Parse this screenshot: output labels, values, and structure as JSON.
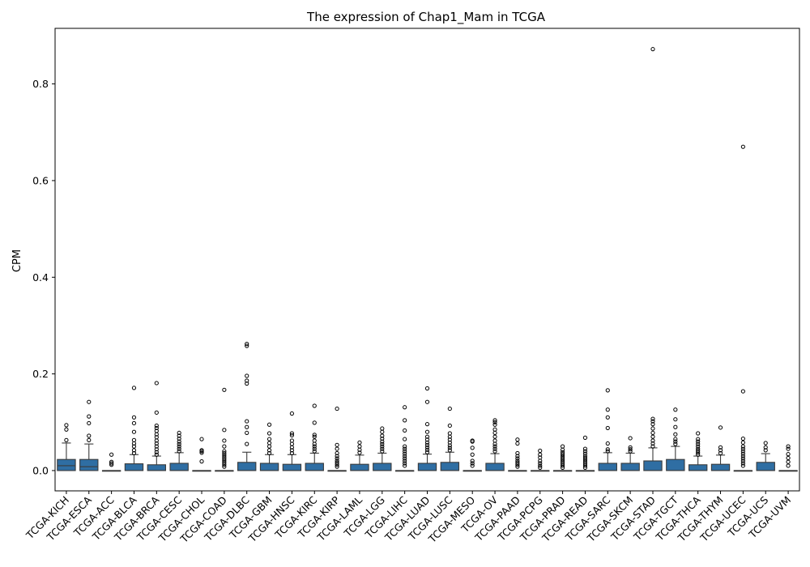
{
  "chart_data": {
    "type": "box",
    "title": "The expression of Chap1_Mam in TCGA",
    "xlabel": "",
    "ylabel": "CPM",
    "ylim": [
      -0.042,
      0.915
    ],
    "yticks": [
      0.0,
      0.2,
      0.4,
      0.6,
      0.8
    ],
    "ytick_labels": [
      "0.0",
      "0.2",
      "0.4",
      "0.6",
      "0.8"
    ],
    "grid": false,
    "legend": "none",
    "box_color": "#2f6ea3",
    "categories": [
      "TCGA-KICH",
      "TCGA-ESCA",
      "TCGA-ACC",
      "TCGA-BLCA",
      "TCGA-BRCA",
      "TCGA-CESC",
      "TCGA-CHOL",
      "TCGA-COAD",
      "TCGA-DLBC",
      "TCGA-GBM",
      "TCGA-HNSC",
      "TCGA-KIRC",
      "TCGA-KIRP",
      "TCGA-LAML",
      "TCGA-LGG",
      "TCGA-LIHC",
      "TCGA-LUAD",
      "TCGA-LUSC",
      "TCGA-MESO",
      "TCGA-OV",
      "TCGA-PAAD",
      "TCGA-PCPG",
      "TCGA-PRAD",
      "TCGA-READ",
      "TCGA-SARC",
      "TCGA-SKCM",
      "TCGA-STAD",
      "TCGA-TGCT",
      "TCGA-THCA",
      "TCGA-THYM",
      "TCGA-UCEC",
      "TCGA-UCS",
      "TCGA-UVM"
    ],
    "boxes": [
      {
        "q1": 0.0,
        "median": 0.01,
        "q3": 0.023,
        "whisker_low": 0.0,
        "whisker_high": 0.057,
        "outliers": [
          0.063,
          0.085,
          0.094
        ]
      },
      {
        "q1": 0.0,
        "median": 0.008,
        "q3": 0.023,
        "whisker_low": 0.0,
        "whisker_high": 0.055,
        "outliers": [
          0.063,
          0.072,
          0.098,
          0.112,
          0.142
        ]
      },
      {
        "q1": 0.0,
        "median": 0.0,
        "q3": 0.0,
        "whisker_low": 0.0,
        "whisker_high": 0.0,
        "outliers": [
          0.012,
          0.015,
          0.018,
          0.033
        ]
      },
      {
        "q1": 0.0,
        "median": 0.0,
        "q3": 0.014,
        "whisker_low": 0.0,
        "whisker_high": 0.033,
        "outliers": [
          0.036,
          0.042,
          0.05,
          0.056,
          0.063,
          0.08,
          0.098,
          0.11,
          0.171
        ]
      },
      {
        "q1": 0.0,
        "median": 0.0,
        "q3": 0.012,
        "whisker_low": 0.0,
        "whisker_high": 0.03,
        "outliers": [
          0.033,
          0.038,
          0.044,
          0.05,
          0.056,
          0.062,
          0.069,
          0.075,
          0.082,
          0.088,
          0.093,
          0.12,
          0.181
        ]
      },
      {
        "q1": 0.0,
        "median": 0.0,
        "q3": 0.015,
        "whisker_low": 0.0,
        "whisker_high": 0.037,
        "outliers": [
          0.04,
          0.045,
          0.05,
          0.055,
          0.06,
          0.066,
          0.072,
          0.078
        ]
      },
      {
        "q1": 0.0,
        "median": 0.0,
        "q3": 0.0,
        "whisker_low": 0.0,
        "whisker_high": 0.0,
        "outliers": [
          0.019,
          0.037,
          0.04,
          0.042,
          0.065
        ]
      },
      {
        "q1": 0.0,
        "median": 0.0,
        "q3": 0.0,
        "whisker_low": 0.0,
        "whisker_high": 0.0,
        "outliers": [
          0.008,
          0.012,
          0.016,
          0.02,
          0.024,
          0.028,
          0.032,
          0.036,
          0.04,
          0.05,
          0.062,
          0.084,
          0.167
        ]
      },
      {
        "q1": 0.0,
        "median": 0.0,
        "q3": 0.017,
        "whisker_low": 0.0,
        "whisker_high": 0.038,
        "outliers": [
          0.055,
          0.078,
          0.09,
          0.102,
          0.18,
          0.186,
          0.196,
          0.258,
          0.262
        ]
      },
      {
        "q1": 0.0,
        "median": 0.0,
        "q3": 0.015,
        "whisker_low": 0.0,
        "whisker_high": 0.033,
        "outliers": [
          0.036,
          0.042,
          0.05,
          0.057,
          0.065,
          0.077,
          0.095
        ]
      },
      {
        "q1": 0.0,
        "median": 0.0,
        "q3": 0.013,
        "whisker_low": 0.0,
        "whisker_high": 0.033,
        "outliers": [
          0.036,
          0.042,
          0.048,
          0.055,
          0.062,
          0.073,
          0.077,
          0.118
        ]
      },
      {
        "q1": 0.0,
        "median": 0.0,
        "q3": 0.015,
        "whisker_low": 0.0,
        "whisker_high": 0.036,
        "outliers": [
          0.04,
          0.045,
          0.05,
          0.055,
          0.062,
          0.07,
          0.074,
          0.099,
          0.134
        ]
      },
      {
        "q1": 0.0,
        "median": 0.0,
        "q3": 0.0,
        "whisker_low": 0.0,
        "whisker_high": 0.0,
        "outliers": [
          0.008,
          0.012,
          0.016,
          0.02,
          0.025,
          0.03,
          0.036,
          0.045,
          0.053,
          0.128
        ]
      },
      {
        "q1": 0.0,
        "median": 0.0,
        "q3": 0.013,
        "whisker_low": 0.0,
        "whisker_high": 0.032,
        "outliers": [
          0.037,
          0.043,
          0.05,
          0.058
        ]
      },
      {
        "q1": 0.0,
        "median": 0.0,
        "q3": 0.015,
        "whisker_low": 0.0,
        "whisker_high": 0.036,
        "outliers": [
          0.04,
          0.045,
          0.05,
          0.055,
          0.06,
          0.066,
          0.072,
          0.08,
          0.087
        ]
      },
      {
        "q1": 0.0,
        "median": 0.0,
        "q3": 0.0,
        "whisker_low": 0.0,
        "whisker_high": 0.0,
        "outliers": [
          0.01,
          0.015,
          0.02,
          0.025,
          0.03,
          0.035,
          0.04,
          0.045,
          0.05,
          0.065,
          0.083,
          0.104,
          0.131
        ]
      },
      {
        "q1": 0.0,
        "median": 0.0,
        "q3": 0.015,
        "whisker_low": 0.0,
        "whisker_high": 0.034,
        "outliers": [
          0.038,
          0.043,
          0.048,
          0.053,
          0.058,
          0.064,
          0.07,
          0.08,
          0.096,
          0.142,
          0.17
        ]
      },
      {
        "q1": 0.0,
        "median": 0.0,
        "q3": 0.017,
        "whisker_low": 0.0,
        "whisker_high": 0.038,
        "outliers": [
          0.042,
          0.047,
          0.052,
          0.058,
          0.064,
          0.07,
          0.077,
          0.093,
          0.128
        ]
      },
      {
        "q1": 0.0,
        "median": 0.0,
        "q3": 0.0,
        "whisker_low": 0.0,
        "whisker_high": 0.0,
        "outliers": [
          0.01,
          0.015,
          0.02,
          0.033,
          0.047,
          0.06,
          0.062
        ]
      },
      {
        "q1": 0.0,
        "median": 0.0,
        "q3": 0.015,
        "whisker_low": 0.0,
        "whisker_high": 0.035,
        "outliers": [
          0.04,
          0.045,
          0.05,
          0.055,
          0.062,
          0.07,
          0.078,
          0.085,
          0.095,
          0.1,
          0.104
        ]
      },
      {
        "q1": 0.0,
        "median": 0.0,
        "q3": 0.0,
        "whisker_low": 0.0,
        "whisker_high": 0.0,
        "outliers": [
          0.008,
          0.012,
          0.016,
          0.02,
          0.025,
          0.03,
          0.036,
          0.056,
          0.064
        ]
      },
      {
        "q1": 0.0,
        "median": 0.0,
        "q3": 0.0,
        "whisker_low": 0.0,
        "whisker_high": 0.0,
        "outliers": [
          0.006,
          0.01,
          0.015,
          0.02,
          0.027,
          0.033,
          0.041
        ]
      },
      {
        "q1": 0.0,
        "median": 0.0,
        "q3": 0.0,
        "whisker_low": 0.0,
        "whisker_high": 0.0,
        "outliers": [
          0.006,
          0.01,
          0.014,
          0.018,
          0.022,
          0.026,
          0.03,
          0.034,
          0.038,
          0.043,
          0.05
        ]
      },
      {
        "q1": 0.0,
        "median": 0.0,
        "q3": 0.0,
        "whisker_low": 0.0,
        "whisker_high": 0.0,
        "outliers": [
          0.006,
          0.01,
          0.014,
          0.018,
          0.022,
          0.026,
          0.03,
          0.035,
          0.04,
          0.045,
          0.068
        ]
      },
      {
        "q1": 0.0,
        "median": 0.0,
        "q3": 0.015,
        "whisker_low": 0.0,
        "whisker_high": 0.037,
        "outliers": [
          0.04,
          0.044,
          0.056,
          0.088,
          0.11,
          0.126,
          0.166
        ]
      },
      {
        "q1": 0.0,
        "median": 0.0,
        "q3": 0.015,
        "whisker_low": 0.0,
        "whisker_high": 0.036,
        "outliers": [
          0.04,
          0.044,
          0.048,
          0.067
        ]
      },
      {
        "q1": 0.0,
        "median": 0.0,
        "q3": 0.02,
        "whisker_low": 0.0,
        "whisker_high": 0.047,
        "outliers": [
          0.05,
          0.056,
          0.062,
          0.07,
          0.078,
          0.087,
          0.096,
          0.102,
          0.107,
          0.872
        ]
      },
      {
        "q1": 0.0,
        "median": 0.0,
        "q3": 0.023,
        "whisker_low": 0.0,
        "whisker_high": 0.05,
        "outliers": [
          0.055,
          0.06,
          0.065,
          0.075,
          0.09,
          0.106,
          0.126
        ]
      },
      {
        "q1": 0.0,
        "median": 0.0,
        "q3": 0.012,
        "whisker_low": 0.0,
        "whisker_high": 0.03,
        "outliers": [
          0.033,
          0.037,
          0.041,
          0.045,
          0.05,
          0.055,
          0.06,
          0.065,
          0.077
        ]
      },
      {
        "q1": 0.0,
        "median": 0.0,
        "q3": 0.013,
        "whisker_low": 0.0,
        "whisker_high": 0.032,
        "outliers": [
          0.036,
          0.042,
          0.048,
          0.089
        ]
      },
      {
        "q1": 0.0,
        "median": 0.0,
        "q3": 0.0,
        "whisker_low": 0.0,
        "whisker_high": 0.0,
        "outliers": [
          0.01,
          0.015,
          0.02,
          0.025,
          0.03,
          0.035,
          0.04,
          0.045,
          0.05,
          0.058,
          0.066,
          0.164,
          0.67
        ]
      },
      {
        "q1": 0.0,
        "median": 0.0,
        "q3": 0.017,
        "whisker_low": 0.0,
        "whisker_high": 0.035,
        "outliers": [
          0.042,
          0.048,
          0.057
        ]
      },
      {
        "q1": 0.0,
        "median": 0.0,
        "q3": 0.0,
        "whisker_low": 0.0,
        "whisker_high": 0.0,
        "outliers": [
          0.01,
          0.018,
          0.026,
          0.034,
          0.045,
          0.05
        ]
      }
    ]
  }
}
